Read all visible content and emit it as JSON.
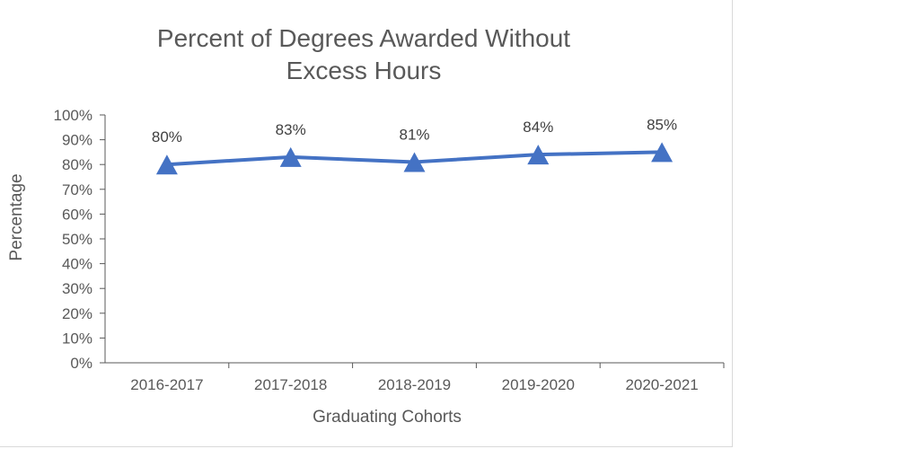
{
  "colors": {
    "series": "#4472c4",
    "axis": "#595959",
    "text": "#595959",
    "border": "#d9d9d9"
  },
  "chart_data": {
    "type": "line",
    "title": "Percent of Degrees Awarded Without Excess Hours",
    "title_lines": [
      "Percent of Degrees Awarded Without",
      "Excess Hours"
    ],
    "xlabel": "Graduating Cohorts",
    "ylabel": "Percentage",
    "categories": [
      "2016-2017",
      "2017-2018",
      "2018-2019",
      "2019-2020",
      "2020-2021"
    ],
    "series": [
      {
        "values": [
          80,
          83,
          81,
          84,
          85
        ],
        "data_labels": [
          "80%",
          "83%",
          "81%",
          "84%",
          "85%"
        ],
        "marker": "triangle"
      }
    ],
    "ylim": [
      0,
      100
    ],
    "yticks": [
      0,
      10,
      20,
      30,
      40,
      50,
      60,
      70,
      80,
      90,
      100
    ],
    "ytick_labels": [
      "0%",
      "10%",
      "20%",
      "30%",
      "40%",
      "50%",
      "60%",
      "70%",
      "80%",
      "90%",
      "100%"
    ],
    "grid": false,
    "legend": "none"
  }
}
